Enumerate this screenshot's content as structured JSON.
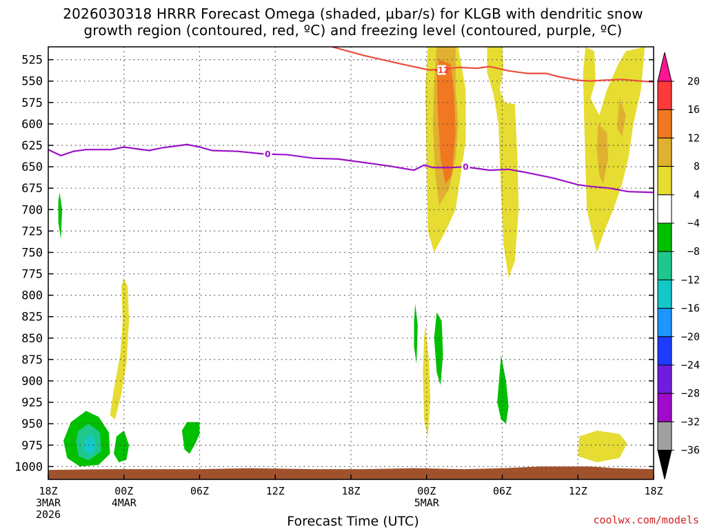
{
  "title_line1": "2026030318 HRRR Forecast Omega (shaded, µbar/s) for KLGB with dendritic snow",
  "title_line2": "growth region (contoured, red, ºC) and freezing level (contoured, purple, ºC)",
  "credit": "coolwx.com/models",
  "chart_data": {
    "type": "time-height",
    "xlabel": "Forecast Time (UTC)",
    "x_ticks": [
      {
        "hour": 0,
        "label": "18Z",
        "sub1": "3MAR",
        "sub2": "2026"
      },
      {
        "hour": 6,
        "label": "00Z",
        "sub1": "4MAR",
        "sub2": ""
      },
      {
        "hour": 12,
        "label": "06Z",
        "sub1": "",
        "sub2": ""
      },
      {
        "hour": 18,
        "label": "12Z",
        "sub1": "",
        "sub2": ""
      },
      {
        "hour": 24,
        "label": "18Z",
        "sub1": "",
        "sub2": ""
      },
      {
        "hour": 30,
        "label": "00Z",
        "sub1": "5MAR",
        "sub2": ""
      },
      {
        "hour": 36,
        "label": "06Z",
        "sub1": "",
        "sub2": ""
      },
      {
        "hour": 42,
        "label": "12Z",
        "sub1": "",
        "sub2": ""
      },
      {
        "hour": 48,
        "label": "18Z",
        "sub1": "",
        "sub2": ""
      }
    ],
    "x_range": [
      0,
      48
    ],
    "y_ticks": [
      525,
      550,
      575,
      600,
      625,
      650,
      675,
      700,
      725,
      750,
      775,
      800,
      825,
      850,
      875,
      900,
      925,
      950,
      975,
      1000
    ],
    "y_range": [
      510,
      1015
    ],
    "grid": true,
    "colorbar": {
      "labels": [
        "20",
        "16",
        "12",
        "8",
        "4",
        "−4",
        "−8",
        "−12",
        "−16",
        "−20",
        "−24",
        "−28",
        "−32",
        "−36"
      ],
      "colors": [
        "#ff1493",
        "#ff3a3a",
        "#f07820",
        "#e0b030",
        "#e6dc32",
        "#ffffff",
        "#00c000",
        "#1ec88c",
        "#14c8c8",
        "#1e96ff",
        "#1e3cff",
        "#6e1edc",
        "#a00ac8",
        "#a0a0a0",
        "#000000"
      ]
    },
    "lines": [
      {
        "color": "#e84c3c",
        "label": "-12",
        "label_at": [
          31.2,
          537
        ],
        "points": [
          [
            22.5,
            510
          ],
          [
            25,
            520
          ],
          [
            28,
            530
          ],
          [
            30.2,
            537
          ],
          [
            31.5,
            536
          ],
          [
            32.5,
            534
          ],
          [
            34,
            535
          ],
          [
            35,
            533
          ],
          [
            36.5,
            538
          ],
          [
            38,
            541
          ],
          [
            39.5,
            541
          ],
          [
            40.5,
            545
          ],
          [
            42,
            549
          ],
          [
            43,
            550
          ],
          [
            44,
            549
          ],
          [
            45.5,
            548
          ],
          [
            47,
            550
          ],
          [
            48,
            551
          ]
        ]
      },
      {
        "color": "#9a10c8",
        "label": "0",
        "label_at": [
          17.4,
          635
        ],
        "label2_at": [
          33.1,
          650
        ],
        "points": [
          [
            0,
            630
          ],
          [
            1,
            637
          ],
          [
            2,
            632
          ],
          [
            3,
            630
          ],
          [
            5,
            630
          ],
          [
            6,
            627
          ],
          [
            7,
            629
          ],
          [
            8,
            631
          ],
          [
            9,
            628
          ],
          [
            11,
            624
          ],
          [
            12,
            627
          ],
          [
            13,
            631
          ],
          [
            15,
            632
          ],
          [
            17,
            635
          ],
          [
            19,
            636
          ],
          [
            21,
            640
          ],
          [
            23,
            641
          ],
          [
            25,
            645
          ],
          [
            27,
            649
          ],
          [
            29,
            654
          ],
          [
            29.8,
            648
          ],
          [
            30.5,
            651
          ],
          [
            32,
            651
          ],
          [
            33,
            650
          ],
          [
            34,
            652
          ],
          [
            35,
            654
          ],
          [
            36.5,
            653
          ],
          [
            38,
            657
          ],
          [
            40,
            663
          ],
          [
            42,
            671
          ],
          [
            43,
            673
          ],
          [
            44.5,
            675
          ],
          [
            46,
            679
          ],
          [
            48,
            680
          ]
        ]
      }
    ],
    "shaded_regions": [
      {
        "value": 4,
        "color": "#e6dc32",
        "points": [
          [
            30.1,
            510
          ],
          [
            32.5,
            510
          ],
          [
            33.1,
            560
          ],
          [
            33.1,
            620
          ],
          [
            32.7,
            660
          ],
          [
            32.3,
            700
          ],
          [
            31.5,
            725
          ],
          [
            30.6,
            750
          ],
          [
            30.1,
            725
          ],
          [
            30.0,
            650
          ],
          [
            29.9,
            560
          ]
        ]
      },
      {
        "value": 8,
        "color": "#e0b030",
        "points": [
          [
            30.8,
            510
          ],
          [
            32.3,
            510
          ],
          [
            32.3,
            560
          ],
          [
            32.5,
            600
          ],
          [
            32.3,
            640
          ],
          [
            31.8,
            675
          ],
          [
            31.0,
            695
          ],
          [
            30.7,
            660
          ],
          [
            30.5,
            600
          ],
          [
            30.6,
            550
          ]
        ]
      },
      {
        "value": 12,
        "color": "#f07820",
        "points": [
          [
            31.0,
            525
          ],
          [
            31.9,
            530
          ],
          [
            32.2,
            565
          ],
          [
            32.3,
            610
          ],
          [
            32.0,
            660
          ],
          [
            31.5,
            670
          ],
          [
            31.1,
            640
          ],
          [
            30.9,
            590
          ],
          [
            30.8,
            540
          ]
        ]
      },
      {
        "value": 4,
        "color": "#e6dc32",
        "points": [
          [
            34.8,
            510
          ],
          [
            36.0,
            510
          ],
          [
            36.1,
            535
          ],
          [
            35.8,
            560
          ],
          [
            36.2,
            575
          ],
          [
            37.0,
            577
          ],
          [
            37.2,
            640
          ],
          [
            37.3,
            700
          ],
          [
            37.0,
            760
          ],
          [
            36.5,
            780
          ],
          [
            36.1,
            740
          ],
          [
            35.9,
            680
          ],
          [
            35.7,
            600
          ],
          [
            35.3,
            565
          ],
          [
            34.8,
            540
          ]
        ]
      },
      {
        "value": 4,
        "color": "#e6dc32",
        "points": [
          [
            42.6,
            510
          ],
          [
            43.3,
            515
          ],
          [
            43.4,
            550
          ],
          [
            43.0,
            570
          ],
          [
            43.7,
            590
          ],
          [
            44.3,
            560
          ],
          [
            45.2,
            530
          ],
          [
            45.8,
            515
          ],
          [
            47.3,
            510
          ],
          [
            47.0,
            560
          ],
          [
            46.4,
            600
          ],
          [
            46.0,
            640
          ],
          [
            45.5,
            670
          ],
          [
            44.8,
            700
          ],
          [
            44.1,
            725
          ],
          [
            43.5,
            750
          ],
          [
            42.7,
            700
          ],
          [
            42.5,
            600
          ],
          [
            42.4,
            540
          ]
        ]
      },
      {
        "value": 8,
        "color": "#e0b030",
        "points": [
          [
            43.6,
            600
          ],
          [
            44.3,
            610
          ],
          [
            44.4,
            640
          ],
          [
            44.0,
            670
          ],
          [
            43.7,
            660
          ],
          [
            43.5,
            630
          ]
        ]
      },
      {
        "value": 8,
        "color": "#e0b030",
        "points": [
          [
            45.3,
            570
          ],
          [
            45.8,
            590
          ],
          [
            45.5,
            615
          ],
          [
            45.1,
            605
          ]
        ]
      },
      {
        "value": 4,
        "color": "#e6dc32",
        "points": [
          [
            6.0,
            780
          ],
          [
            6.3,
            790
          ],
          [
            6.4,
            830
          ],
          [
            6.2,
            880
          ],
          [
            5.8,
            915
          ],
          [
            5.3,
            945
          ],
          [
            4.9,
            940
          ],
          [
            5.2,
            910
          ],
          [
            5.7,
            870
          ],
          [
            5.9,
            830
          ],
          [
            5.8,
            790
          ]
        ]
      },
      {
        "value": 4,
        "color": "#e6dc32",
        "points": [
          [
            29.9,
            835
          ],
          [
            30.2,
            880
          ],
          [
            30.3,
            920
          ],
          [
            30.1,
            965
          ],
          [
            29.8,
            945
          ],
          [
            29.7,
            890
          ],
          [
            29.8,
            850
          ]
        ]
      },
      {
        "value": 4,
        "color": "#e6dc32",
        "points": [
          [
            42.1,
            965
          ],
          [
            43.5,
            958
          ],
          [
            45.3,
            962
          ],
          [
            45.9,
            973
          ],
          [
            45.3,
            990
          ],
          [
            43.5,
            995
          ],
          [
            42.0,
            988
          ]
        ]
      },
      {
        "value": -4,
        "color": "#00c000",
        "points": [
          [
            0.9,
            680
          ],
          [
            1.1,
            700
          ],
          [
            1.0,
            735
          ],
          [
            0.8,
            715
          ],
          [
            0.8,
            690
          ]
        ]
      },
      {
        "value": -4,
        "color": "#00c000",
        "points": [
          [
            1.8,
            948
          ],
          [
            3.0,
            935
          ],
          [
            4.0,
            942
          ],
          [
            4.8,
            960
          ],
          [
            4.9,
            985
          ],
          [
            4.0,
            998
          ],
          [
            2.5,
            1000
          ],
          [
            1.5,
            990
          ],
          [
            1.2,
            970
          ]
        ]
      },
      {
        "value": -8,
        "color": "#1ec88c",
        "points": [
          [
            2.4,
            958
          ],
          [
            3.2,
            950
          ],
          [
            4.1,
            960
          ],
          [
            4.2,
            982
          ],
          [
            3.2,
            993
          ],
          [
            2.4,
            988
          ],
          [
            2.2,
            970
          ]
        ]
      },
      {
        "value": -12,
        "color": "#14c8c8",
        "points": [
          [
            2.9,
            968
          ],
          [
            3.5,
            962
          ],
          [
            3.8,
            978
          ],
          [
            3.3,
            987
          ],
          [
            2.8,
            980
          ]
        ]
      },
      {
        "value": -4,
        "color": "#00c000",
        "points": [
          [
            5.4,
            965
          ],
          [
            6.0,
            958
          ],
          [
            6.4,
            975
          ],
          [
            6.2,
            992
          ],
          [
            5.6,
            995
          ],
          [
            5.2,
            985
          ]
        ]
      },
      {
        "value": -4,
        "color": "#00c000",
        "points": [
          [
            10.6,
            958
          ],
          [
            11.0,
            948
          ],
          [
            12.0,
            948
          ],
          [
            12.0,
            962
          ],
          [
            11.6,
            975
          ],
          [
            11.2,
            985
          ],
          [
            10.8,
            980
          ]
        ]
      },
      {
        "value": -4,
        "color": "#00c000",
        "points": [
          [
            29.1,
            810
          ],
          [
            29.3,
            835
          ],
          [
            29.2,
            880
          ],
          [
            29.0,
            860
          ],
          [
            29.0,
            830
          ]
        ]
      },
      {
        "value": -4,
        "color": "#00c000",
        "points": [
          [
            30.8,
            820
          ],
          [
            31.2,
            830
          ],
          [
            31.3,
            870
          ],
          [
            31.1,
            905
          ],
          [
            30.8,
            890
          ],
          [
            30.6,
            850
          ]
        ]
      },
      {
        "value": -4,
        "color": "#00c000",
        "points": [
          [
            35.9,
            870
          ],
          [
            36.3,
            900
          ],
          [
            36.5,
            930
          ],
          [
            36.3,
            950
          ],
          [
            35.9,
            945
          ],
          [
            35.6,
            925
          ],
          [
            35.8,
            890
          ]
        ]
      }
    ],
    "terrain_band": {
      "color": "#a0522d",
      "points": [
        [
          0,
          1004
        ],
        [
          5,
          1003
        ],
        [
          12,
          1003
        ],
        [
          16,
          1002
        ],
        [
          21,
          1003
        ],
        [
          25,
          1003
        ],
        [
          29,
          1002
        ],
        [
          33,
          1003
        ],
        [
          36,
          1002
        ],
        [
          39,
          1000
        ],
        [
          43,
          1000
        ],
        [
          45,
          1002
        ],
        [
          48,
          1003
        ]
      ]
    }
  }
}
